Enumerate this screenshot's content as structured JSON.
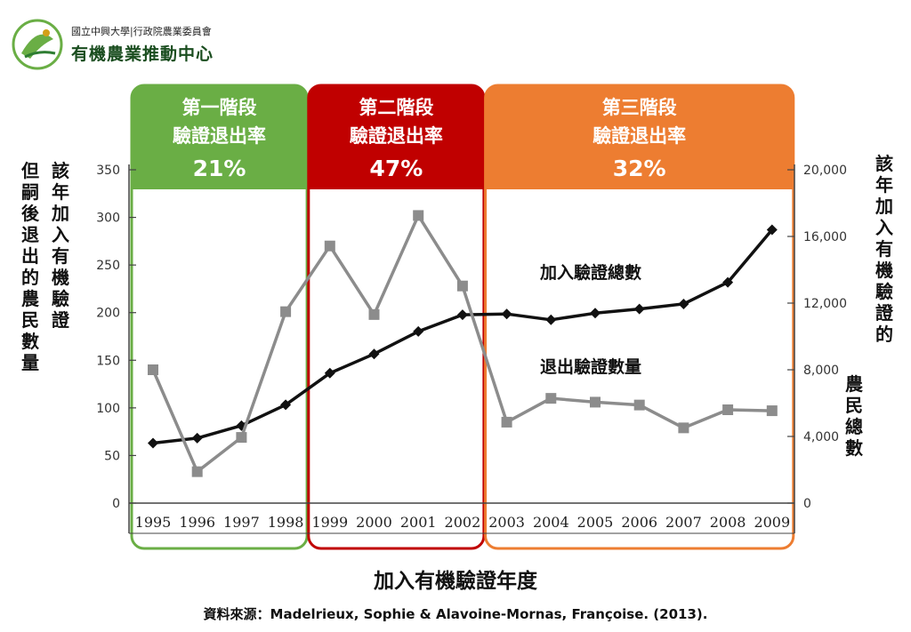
{
  "logo": {
    "org_line": "國立中興大學|行政院農業委員會",
    "center_name": "有機農業推動中心"
  },
  "y_left_title": [
    "該年加入有機驗證",
    "但嗣後退出的農民數量"
  ],
  "y_right_title": [
    "該年加入有機驗證的",
    "農民總數"
  ],
  "x_axis_title": "加入有機驗證年度",
  "source": "資料來源：Madelrieux, Sophie & Alavoine-Mornas, Françoise. (2013).",
  "stages": [
    {
      "title": "第一階段",
      "subtitle": "驗證退出率",
      "pct": "21%",
      "color": "#6aae45",
      "from": "1995",
      "to": "1998"
    },
    {
      "title": "第二階段",
      "subtitle": "驗證退出率",
      "pct": "47%",
      "color": "#c00000",
      "from": "1999",
      "to": "2002"
    },
    {
      "title": "第三階段",
      "subtitle": "驗證退出率",
      "pct": "32%",
      "color": "#ed7d31",
      "from": "2003",
      "to": "2009"
    }
  ],
  "chart_data": {
    "type": "line",
    "categories": [
      "1995",
      "1996",
      "1997",
      "1998",
      "1999",
      "2000",
      "2001",
      "2002",
      "2003",
      "2004",
      "2005",
      "2006",
      "2007",
      "2008",
      "2009"
    ],
    "xlabel": "加入有機驗證年度",
    "ylabel_left": "該年加入有機驗證但嗣後退出的農民數量",
    "ylabel_right": "該年加入有機驗證的農民總數",
    "ylim_left": [
      0,
      350
    ],
    "yticks_left": [
      0,
      50,
      100,
      150,
      200,
      250,
      300,
      350
    ],
    "ylim_right": [
      0,
      20000
    ],
    "yticks_right": [
      0,
      4000,
      8000,
      12000,
      16000,
      20000
    ],
    "ytick_labels_right": [
      "0",
      "4,000",
      "8,000",
      "12,000",
      "16,000",
      "20,000"
    ],
    "series": [
      {
        "name": "加入驗證總數",
        "axis": "right",
        "color": "#111111",
        "marker": "diamond",
        "values": [
          3600,
          3900,
          4650,
          5900,
          7800,
          8950,
          10300,
          11300,
          11350,
          11000,
          11400,
          11650,
          11950,
          13250,
          16400
        ]
      },
      {
        "name": "退出驗證數量",
        "axis": "left",
        "color": "#8c8c8c",
        "marker": "square",
        "values": [
          140,
          33,
          69,
          201,
          270,
          198,
          302,
          228,
          85,
          110,
          106,
          103,
          79,
          98,
          97
        ]
      }
    ]
  }
}
